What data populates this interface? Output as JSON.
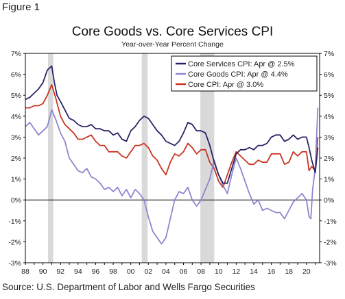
{
  "figure_label": "Figure 1",
  "source": "Source: U.S. Department of Labor and Wells Fargo Securities",
  "chart_data": {
    "type": "line",
    "title": "Core Goods vs. Core Services CPI",
    "subtitle": "Year-over-Year Percent Change",
    "xlabel": "",
    "ylabel": "",
    "xlim": [
      1988,
      2021.5
    ],
    "ylim": [
      -3,
      7
    ],
    "x_tick_labels": [
      "88",
      "90",
      "92",
      "94",
      "96",
      "98",
      "00",
      "02",
      "04",
      "06",
      "08",
      "10",
      "12",
      "14",
      "16",
      "18",
      "20"
    ],
    "x_tick_years": [
      1988,
      1990,
      1992,
      1994,
      1996,
      1998,
      2000,
      2002,
      2004,
      2006,
      2008,
      2010,
      2012,
      2014,
      2016,
      2018,
      2020
    ],
    "y_ticks": [
      -3,
      -2,
      -1,
      0,
      1,
      2,
      3,
      4,
      5,
      6,
      7
    ],
    "y_tick_labels": [
      "-3%",
      "-2%",
      "-1%",
      "0%",
      "1%",
      "2%",
      "3%",
      "4%",
      "5%",
      "6%",
      "7%"
    ],
    "grid": false,
    "zero_line": true,
    "legend_position": "top-right",
    "recessions": [
      [
        1990.58,
        1991.17
      ],
      [
        2001.25,
        2001.92
      ],
      [
        2007.92,
        2009.5
      ]
    ],
    "series": [
      {
        "name": "Core Services CPI: Apr @ 2.5%",
        "color": "#2b2266",
        "points": [
          [
            1988,
            4.8
          ],
          [
            1988.5,
            4.9
          ],
          [
            1989,
            5.1
          ],
          [
            1989.5,
            5.3
          ],
          [
            1990,
            5.6
          ],
          [
            1990.5,
            6.2
          ],
          [
            1991,
            6.4
          ],
          [
            1991.3,
            5.6
          ],
          [
            1991.6,
            5.0
          ],
          [
            1992,
            4.7
          ],
          [
            1992.5,
            4.3
          ],
          [
            1993,
            3.9
          ],
          [
            1993.5,
            3.8
          ],
          [
            1994,
            3.6
          ],
          [
            1994.5,
            3.5
          ],
          [
            1995,
            3.5
          ],
          [
            1995.5,
            3.6
          ],
          [
            1996,
            3.4
          ],
          [
            1996.5,
            3.4
          ],
          [
            1997,
            3.3
          ],
          [
            1997.5,
            3.3
          ],
          [
            1998,
            3.1
          ],
          [
            1998.5,
            3.2
          ],
          [
            1999,
            2.9
          ],
          [
            1999.5,
            2.8
          ],
          [
            2000,
            3.3
          ],
          [
            2000.5,
            3.5
          ],
          [
            2001,
            3.8
          ],
          [
            2001.5,
            4.0
          ],
          [
            2002,
            3.9
          ],
          [
            2002.5,
            3.6
          ],
          [
            2003,
            3.3
          ],
          [
            2003.5,
            3.1
          ],
          [
            2004,
            2.8
          ],
          [
            2004.5,
            2.7
          ],
          [
            2005,
            2.6
          ],
          [
            2005.5,
            2.8
          ],
          [
            2006,
            3.2
          ],
          [
            2006.5,
            3.7
          ],
          [
            2007,
            3.6
          ],
          [
            2007.5,
            3.3
          ],
          [
            2008,
            3.3
          ],
          [
            2008.5,
            3.2
          ],
          [
            2009,
            2.6
          ],
          [
            2009.5,
            1.8
          ],
          [
            2010,
            1.2
          ],
          [
            2010.5,
            0.8
          ],
          [
            2011,
            0.8
          ],
          [
            2011.5,
            1.5
          ],
          [
            2012,
            2.2
          ],
          [
            2012.5,
            2.4
          ],
          [
            2013,
            2.4
          ],
          [
            2013.5,
            2.5
          ],
          [
            2014,
            2.4
          ],
          [
            2014.5,
            2.6
          ],
          [
            2015,
            2.6
          ],
          [
            2015.5,
            2.7
          ],
          [
            2016,
            3.0
          ],
          [
            2016.5,
            3.1
          ],
          [
            2017,
            3.1
          ],
          [
            2017.5,
            2.8
          ],
          [
            2018,
            2.9
          ],
          [
            2018.5,
            3.1
          ],
          [
            2019,
            2.9
          ],
          [
            2019.5,
            3.0
          ],
          [
            2020,
            3.0
          ],
          [
            2020.3,
            2.5
          ],
          [
            2020.6,
            1.9
          ],
          [
            2021,
            1.3
          ],
          [
            2021.3,
            2.5
          ]
        ]
      },
      {
        "name": "Core Goods CPI: Apr @ 4.4%",
        "color": "#8d86d0",
        "points": [
          [
            1988,
            3.5
          ],
          [
            1988.5,
            3.7
          ],
          [
            1989,
            3.4
          ],
          [
            1989.5,
            3.1
          ],
          [
            1990,
            3.3
          ],
          [
            1990.5,
            3.5
          ],
          [
            1991,
            4.3
          ],
          [
            1991.5,
            3.8
          ],
          [
            1992,
            3.2
          ],
          [
            1992.5,
            2.8
          ],
          [
            1993,
            2.0
          ],
          [
            1993.5,
            1.7
          ],
          [
            1994,
            1.4
          ],
          [
            1994.5,
            1.3
          ],
          [
            1995,
            1.5
          ],
          [
            1995.5,
            1.1
          ],
          [
            1996,
            1.0
          ],
          [
            1996.5,
            0.8
          ],
          [
            1997,
            0.5
          ],
          [
            1997.5,
            0.6
          ],
          [
            1998,
            0.4
          ],
          [
            1998.5,
            0.6
          ],
          [
            1999,
            0.2
          ],
          [
            1999.5,
            0.5
          ],
          [
            2000,
            0.1
          ],
          [
            2000.5,
            0.5
          ],
          [
            2001,
            0.3
          ],
          [
            2001.5,
            0.0
          ],
          [
            2002,
            -0.8
          ],
          [
            2002.5,
            -1.5
          ],
          [
            2003,
            -1.8
          ],
          [
            2003.5,
            -2.1
          ],
          [
            2004,
            -1.8
          ],
          [
            2004.5,
            -0.9
          ],
          [
            2005,
            0.0
          ],
          [
            2005.5,
            0.4
          ],
          [
            2006,
            0.3
          ],
          [
            2006.5,
            0.6
          ],
          [
            2007,
            0.0
          ],
          [
            2007.5,
            -0.3
          ],
          [
            2008,
            0.0
          ],
          [
            2008.5,
            0.5
          ],
          [
            2009,
            1.0
          ],
          [
            2009.5,
            1.9
          ],
          [
            2010,
            1.2
          ],
          [
            2010.5,
            0.7
          ],
          [
            2011,
            0.3
          ],
          [
            2011.5,
            1.2
          ],
          [
            2012,
            2.0
          ],
          [
            2012.5,
            1.5
          ],
          [
            2013,
            0.9
          ],
          [
            2013.5,
            0.3
          ],
          [
            2014,
            -0.2
          ],
          [
            2014.5,
            0.0
          ],
          [
            2015,
            -0.5
          ],
          [
            2015.5,
            -0.4
          ],
          [
            2016,
            -0.5
          ],
          [
            2016.5,
            -0.6
          ],
          [
            2017,
            -0.6
          ],
          [
            2017.5,
            -0.9
          ],
          [
            2018,
            -0.5
          ],
          [
            2018.5,
            -0.1
          ],
          [
            2019,
            0.1
          ],
          [
            2019.5,
            0.3
          ],
          [
            2020,
            0.0
          ],
          [
            2020.3,
            -0.8
          ],
          [
            2020.5,
            -0.9
          ],
          [
            2020.7,
            0.5
          ],
          [
            2021,
            1.5
          ],
          [
            2021.3,
            4.4
          ]
        ]
      },
      {
        "name": "Core CPI: Apr @ 3.0%",
        "color": "#c93420",
        "points": [
          [
            1988,
            4.4
          ],
          [
            1988.5,
            4.4
          ],
          [
            1989,
            4.5
          ],
          [
            1989.5,
            4.5
          ],
          [
            1990,
            4.6
          ],
          [
            1990.5,
            5.0
          ],
          [
            1991,
            5.5
          ],
          [
            1991.5,
            4.8
          ],
          [
            1992,
            4.0
          ],
          [
            1992.5,
            3.6
          ],
          [
            1993,
            3.4
          ],
          [
            1993.5,
            3.2
          ],
          [
            1994,
            2.9
          ],
          [
            1994.5,
            2.9
          ],
          [
            1995,
            3.0
          ],
          [
            1995.5,
            3.1
          ],
          [
            1996,
            2.8
          ],
          [
            1996.5,
            2.6
          ],
          [
            1997,
            2.6
          ],
          [
            1997.5,
            2.3
          ],
          [
            1998,
            2.3
          ],
          [
            1998.5,
            2.3
          ],
          [
            1999,
            2.1
          ],
          [
            1999.5,
            2.0
          ],
          [
            2000,
            2.3
          ],
          [
            2000.5,
            2.6
          ],
          [
            2001,
            2.6
          ],
          [
            2001.5,
            2.7
          ],
          [
            2002,
            2.5
          ],
          [
            2002.5,
            2.1
          ],
          [
            2003,
            1.9
          ],
          [
            2003.5,
            1.5
          ],
          [
            2004,
            1.2
          ],
          [
            2004.5,
            1.8
          ],
          [
            2005,
            2.2
          ],
          [
            2005.5,
            2.1
          ],
          [
            2006,
            2.3
          ],
          [
            2006.5,
            2.7
          ],
          [
            2007,
            2.5
          ],
          [
            2007.5,
            2.2
          ],
          [
            2008,
            2.4
          ],
          [
            2008.5,
            2.4
          ],
          [
            2009,
            1.8
          ],
          [
            2009.5,
            1.5
          ],
          [
            2010,
            0.9
          ],
          [
            2010.5,
            0.6
          ],
          [
            2011,
            1.2
          ],
          [
            2011.5,
            1.8
          ],
          [
            2012,
            2.3
          ],
          [
            2012.5,
            2.1
          ],
          [
            2013,
            1.9
          ],
          [
            2013.5,
            1.7
          ],
          [
            2014,
            1.7
          ],
          [
            2014.5,
            1.9
          ],
          [
            2015,
            1.8
          ],
          [
            2015.5,
            1.8
          ],
          [
            2016,
            2.2
          ],
          [
            2016.5,
            2.2
          ],
          [
            2017,
            2.2
          ],
          [
            2017.5,
            1.7
          ],
          [
            2018,
            1.8
          ],
          [
            2018.5,
            2.3
          ],
          [
            2019,
            2.1
          ],
          [
            2019.5,
            2.3
          ],
          [
            2020,
            2.3
          ],
          [
            2020.3,
            1.4
          ],
          [
            2020.6,
            1.6
          ],
          [
            2021,
            1.4
          ],
          [
            2021.3,
            3.0
          ]
        ]
      }
    ]
  }
}
